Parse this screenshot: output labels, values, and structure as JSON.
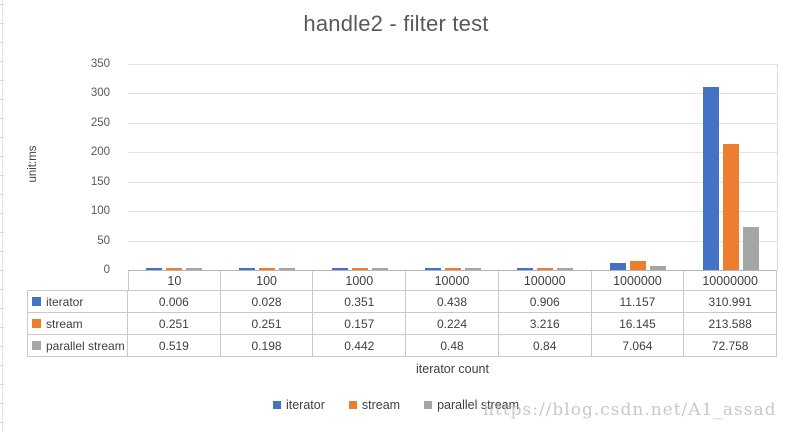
{
  "chart_data": {
    "type": "bar",
    "title": "handle2 - filter test",
    "xlabel": "iterator count",
    "ylabel": "unit:ms",
    "categories": [
      "10",
      "100",
      "1000",
      "10000",
      "100000",
      "1000000",
      "10000000"
    ],
    "series": [
      {
        "name": "iterator",
        "color": "#4472C4",
        "values": [
          0.006,
          0.028,
          0.351,
          0.438,
          0.906,
          11.157,
          310.991
        ]
      },
      {
        "name": "stream",
        "color": "#ED7D31",
        "values": [
          0.251,
          0.251,
          0.157,
          0.224,
          3.216,
          16.145,
          213.588
        ]
      },
      {
        "name": "parallel stream",
        "color": "#A5A5A5",
        "values": [
          0.519,
          0.198,
          0.442,
          0.48,
          0.84,
          7.064,
          72.758
        ]
      }
    ],
    "ylim": [
      0,
      350
    ],
    "ytick_step": 50,
    "grid": true,
    "legend_position": "bottom",
    "show_data_table": true
  },
  "watermark": "https://blog.csdn.net/A1_assad"
}
